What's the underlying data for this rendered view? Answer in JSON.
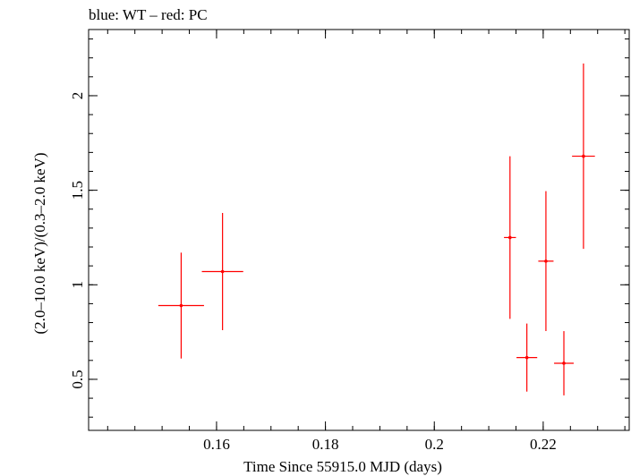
{
  "chart_data": {
    "type": "scatter",
    "title": "blue: WT – red: PC",
    "xlabel": "Time Since 55915.0 MJD (days)",
    "ylabel": "(2.0–10.0 keV)/(0.3–2.0 keV)",
    "xlim": [
      0.1365,
      0.2358
    ],
    "ylim": [
      0.23,
      2.35
    ],
    "x_ticks": [
      0.16,
      0.18,
      0.2,
      0.22
    ],
    "x_tick_labels": [
      "0.16",
      "0.18",
      "0.2",
      "0.22"
    ],
    "y_ticks": [
      0.5,
      1,
      1.5,
      2
    ],
    "y_tick_labels": [
      "0.5",
      "1",
      "1.5",
      "2"
    ],
    "x_minor_step": 0.005,
    "y_minor_step": 0.1,
    "grid": false,
    "series": [
      {
        "color": "#ff0000",
        "points": [
          {
            "x": 0.1535,
            "y": 0.89,
            "xerr": 0.0042,
            "yerr_lo": 0.28,
            "yerr_hi": 0.28
          },
          {
            "x": 0.1611,
            "y": 1.07,
            "xerr": 0.0038,
            "yerr_lo": 0.31,
            "yerr_hi": 0.31
          },
          {
            "x": 0.2139,
            "y": 1.25,
            "xerr": 0.0011,
            "yerr_lo": 0.43,
            "yerr_hi": 0.43
          },
          {
            "x": 0.217,
            "y": 0.615,
            "xerr": 0.0019,
            "yerr_lo": 0.18,
            "yerr_hi": 0.18
          },
          {
            "x": 0.2205,
            "y": 1.125,
            "xerr": 0.0014,
            "yerr_lo": 0.37,
            "yerr_hi": 0.37
          },
          {
            "x": 0.2238,
            "y": 0.585,
            "xerr": 0.0018,
            "yerr_lo": 0.17,
            "yerr_hi": 0.17
          },
          {
            "x": 0.2274,
            "y": 1.68,
            "xerr": 0.0021,
            "yerr_lo": 0.49,
            "yerr_hi": 0.49
          }
        ]
      }
    ]
  }
}
